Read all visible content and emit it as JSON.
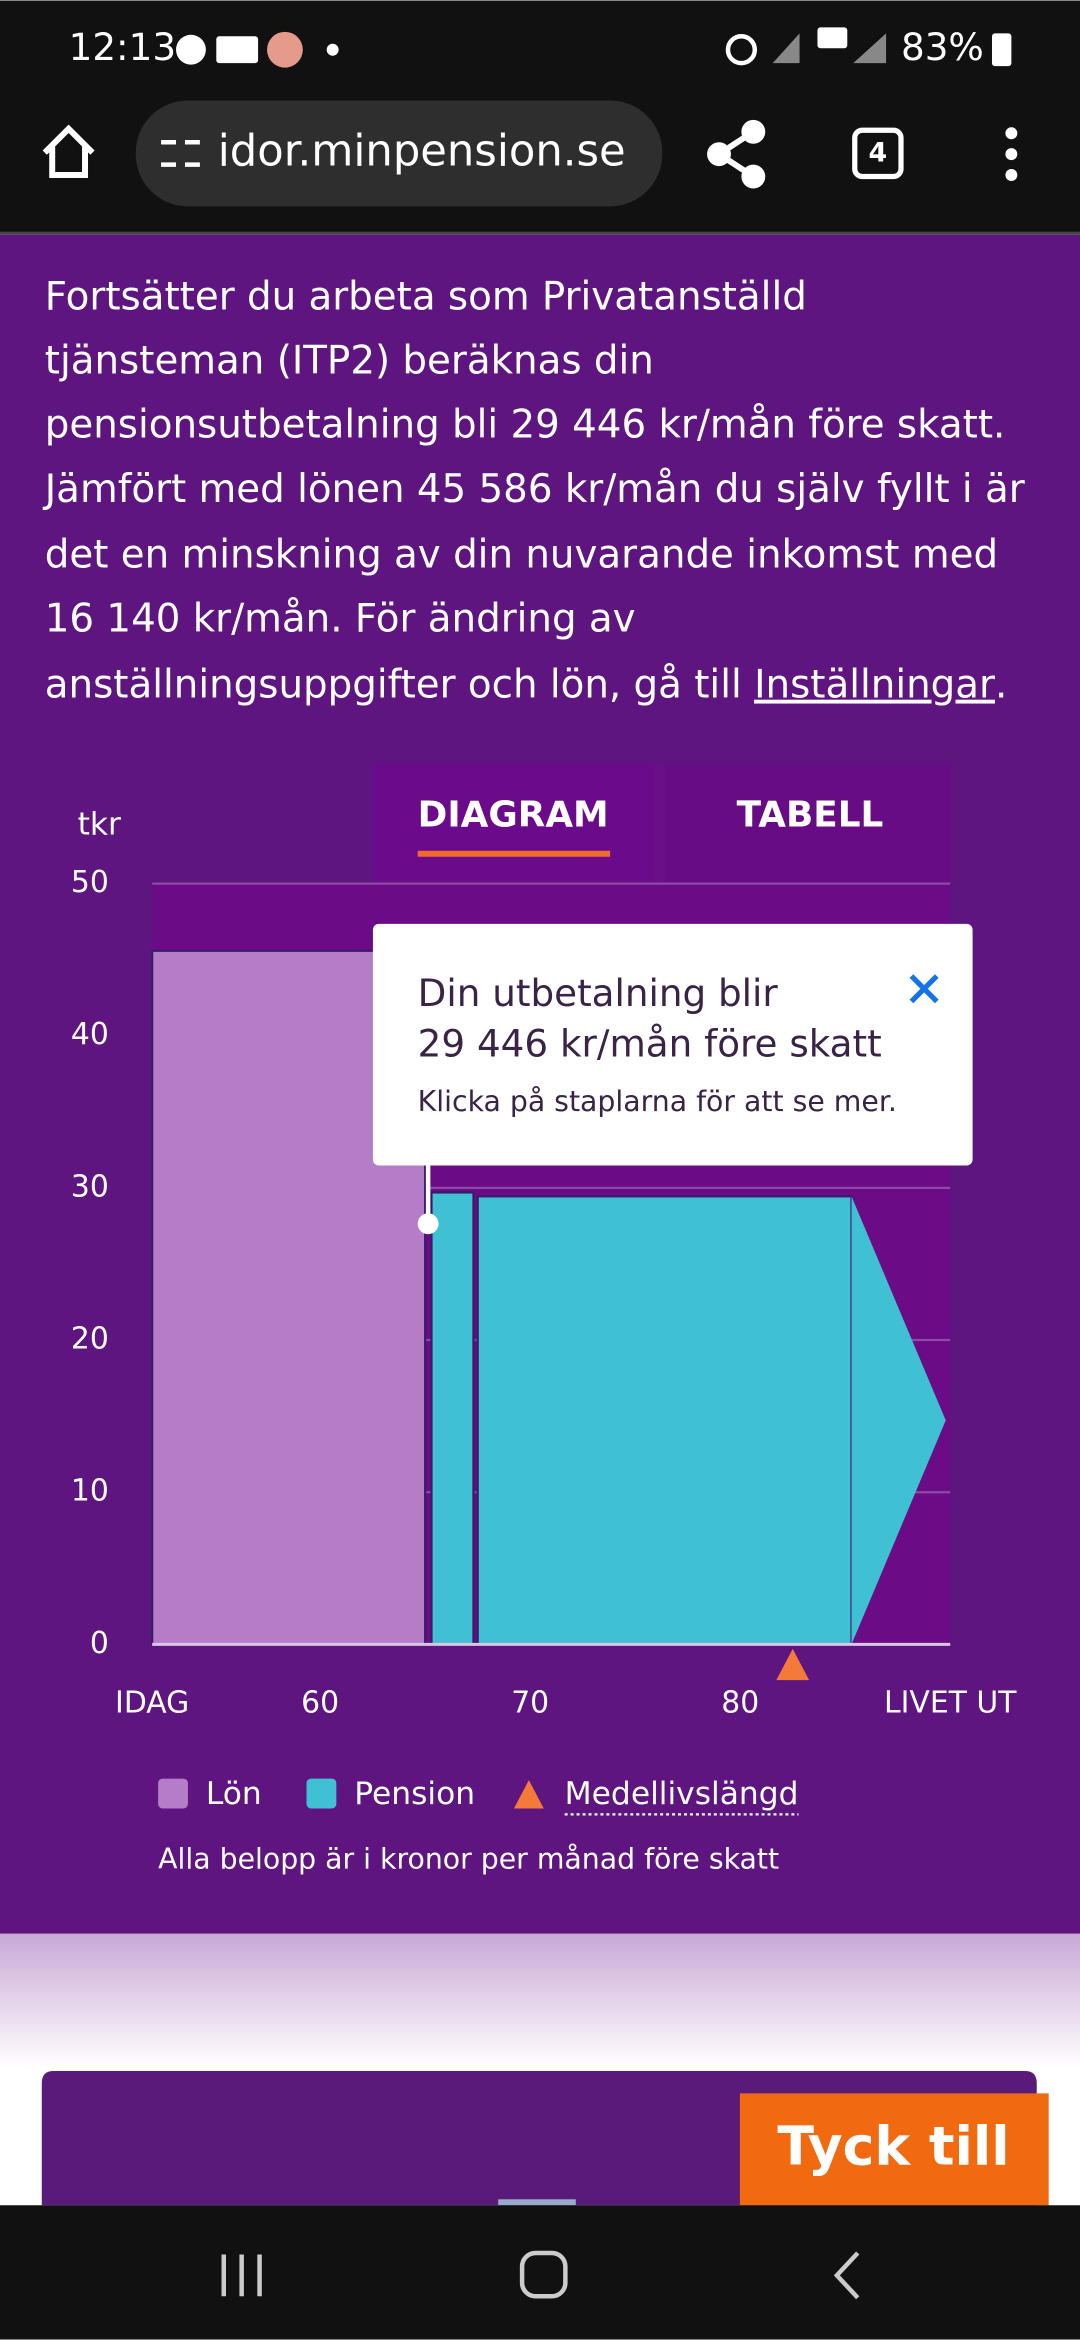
{
  "status_bar": {
    "time": "12:13",
    "battery": "83%"
  },
  "browser": {
    "url": "idor.minpension.se",
    "tab_count": "4"
  },
  "intro": {
    "lines": [
      "Fortsätter du arbeta som Privatanställd",
      "tjänsteman (ITP2) beräknas din",
      "pensionsutbetalning bli 29 446 kr/mån före skatt.",
      "Jämfört med lönen 45 586 kr/mån du själv fyllt i är",
      "det en minskning av din nuvarande inkomst med",
      "16 140 kr/mån. För ändring av"
    ],
    "last_line": "anställningsuppgifter och lön, gå till ",
    "link": "Inställningar",
    "end": "."
  },
  "chart_data": {
    "type": "bar",
    "tabs": [
      "DIAGRAM",
      "TABELL"
    ],
    "y_label": "tkr",
    "xlim": [
      52,
      90
    ],
    "xticks": [
      {
        "value": 52,
        "label": "IDAG"
      },
      60,
      70,
      80,
      {
        "value": 90,
        "label": "LIVET UT"
      }
    ],
    "ylim": [
      0,
      50
    ],
    "yticks": [
      0,
      10,
      20,
      30,
      40,
      50
    ],
    "grid": true,
    "series": [
      {
        "name": "Lön",
        "color": "#b57cc7",
        "segments": [
          {
            "x": [
              52,
              65
            ],
            "value": 45.586
          }
        ]
      },
      {
        "name": "Pension",
        "color": "#3fc1d3",
        "segments": [
          {
            "x": [
              65.3,
              67.3
            ],
            "value": 29.7
          },
          {
            "x": [
              67.5,
              85.3
            ],
            "value": 29.446
          }
        ]
      }
    ],
    "marker": {
      "name": "Medellivslängd",
      "color": "#f47a3a",
      "x": 82.5
    },
    "tooltip": {
      "title": "Din utbetalning blir",
      "amount": "29 446 kr/mån före skatt",
      "hint": "Klicka på staplarna för att se mer."
    },
    "note": "Alla belopp är i kronor per månad före skatt"
  },
  "feedback_button": "Tyck till"
}
